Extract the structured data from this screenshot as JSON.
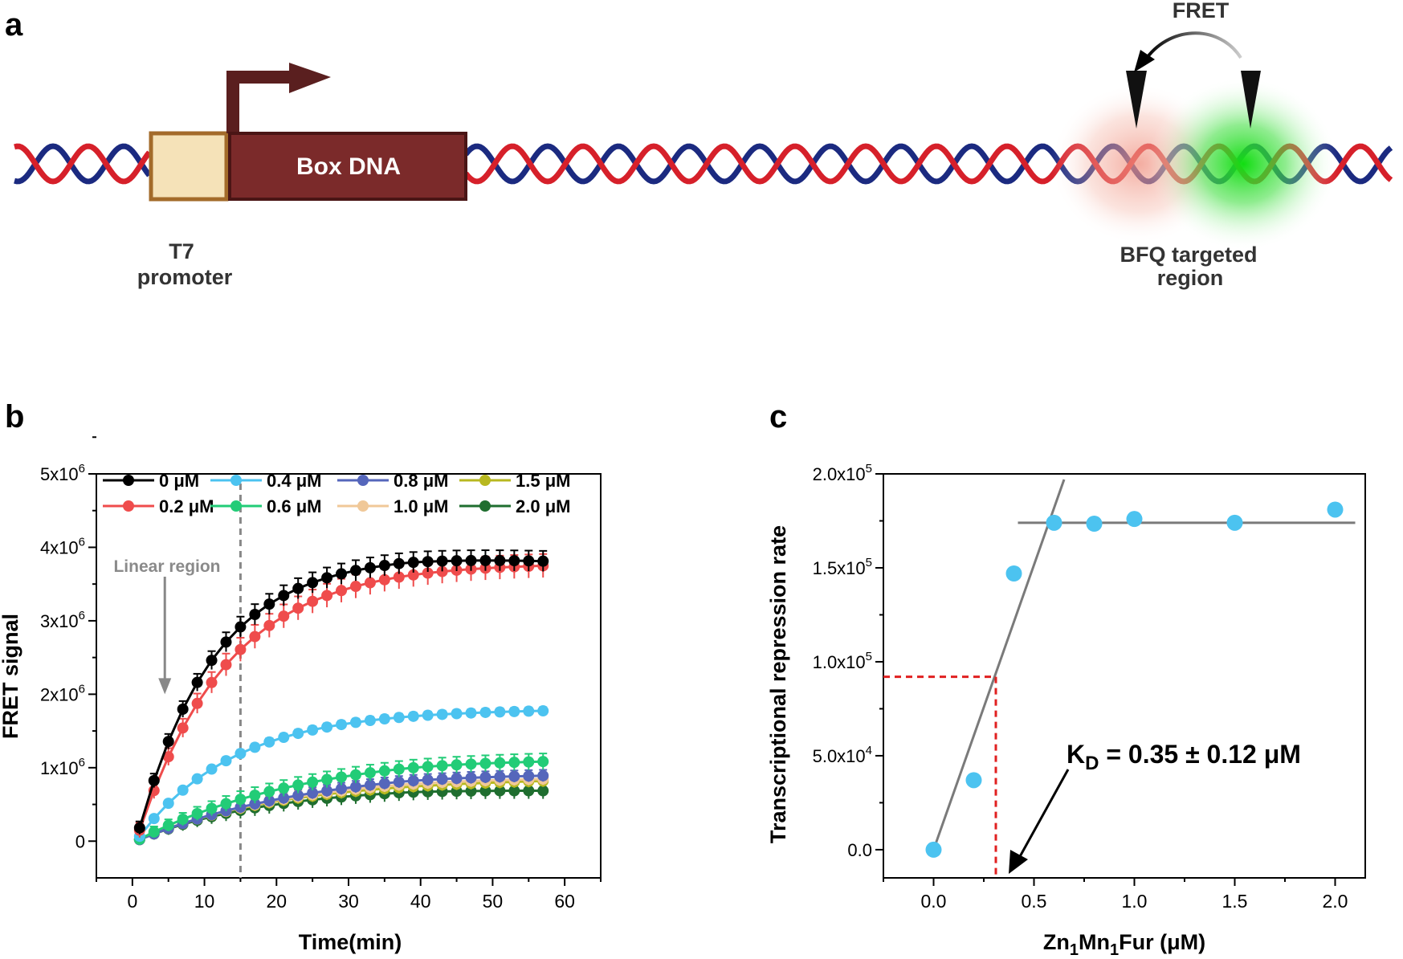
{
  "panel_a": {
    "letter": "a",
    "fret_label": "FRET",
    "box_label": "Box DNA",
    "promoter_line1": "T7",
    "promoter_line2": "promoter",
    "bfq_line1": "BFQ targeted",
    "bfq_line2": "region",
    "colors": {
      "strand_red": "#d6202a",
      "strand_blue": "#1b2a80",
      "box": "#7b2a2a",
      "promoter_fill": "#f5e2b8",
      "promoter_border": "#a36b2a",
      "fret_red": "#f2a090",
      "fret_green": "#22dd22"
    }
  },
  "chart_data": [
    {
      "panel": "b",
      "type": "line",
      "xlabel": "Time(min)",
      "ylabel": "FRET signal",
      "xlim": [
        -5,
        65
      ],
      "ylim": [
        -500000,
        5000000
      ],
      "xticks": [
        "0",
        "10",
        "20",
        "30",
        "40",
        "50",
        "60"
      ],
      "xtick_values": [
        0,
        10,
        20,
        30,
        40,
        50,
        60
      ],
      "yticks": [
        {
          "value": 0,
          "base": "0",
          "exp": ""
        },
        {
          "value": 1000000,
          "base": "1x10",
          "exp": "6"
        },
        {
          "value": 2000000,
          "base": "2x10",
          "exp": "6"
        },
        {
          "value": 3000000,
          "base": "3x10",
          "exp": "6"
        },
        {
          "value": 4000000,
          "base": "4x10",
          "exp": "6"
        },
        {
          "value": 5000000,
          "base": "5x10",
          "exp": "6"
        }
      ],
      "annotation": "Linear region",
      "linear_region_end_min": 15,
      "arrow_x_min": 4.5,
      "arrow_y_range": [
        3600000,
        2000000
      ],
      "time_range": [
        1,
        57
      ],
      "time_step": 2,
      "series": [
        {
          "name": "0 μM",
          "color": "#000000",
          "plateau": 3900000,
          "final": 3830000,
          "k": 0.095,
          "err": 140000
        },
        {
          "name": "0.2 μM",
          "color": "#ef4c4c",
          "plateau": 3800000,
          "final": 3790000,
          "k": 0.08,
          "err": 160000
        },
        {
          "name": "0.4 μM",
          "color": "#4cc3f0",
          "plateau": 1800000,
          "final": 1800000,
          "k": 0.075,
          "err": 50000
        },
        {
          "name": "0.6 μM",
          "color": "#22cc77",
          "plateau": 1250000,
          "final": 1200000,
          "k": 0.042,
          "err": 110000
        },
        {
          "name": "0.8 μM",
          "color": "#5566bb",
          "plateau": 1050000,
          "final": 1000000,
          "k": 0.04,
          "err": 80000
        },
        {
          "name": "1.0 μM",
          "color": "#f0c898",
          "plateau": 950000,
          "final": 920000,
          "k": 0.045,
          "err": 80000
        },
        {
          "name": "1.5 μM",
          "color": "#b8b820",
          "plateau": 870000,
          "final": 870000,
          "k": 0.05,
          "err": 80000
        },
        {
          "name": "2.0 μM",
          "color": "#1f6e2f",
          "plateau": 760000,
          "final": 720000,
          "k": 0.055,
          "err": 110000
        }
      ]
    },
    {
      "panel": "c",
      "type": "scatter",
      "xlabel_parts": [
        "Zn",
        "1",
        "Mn",
        "1",
        "Fur (μM)"
      ],
      "ylabel": "Transcriptional repression rate",
      "xlim": [
        -0.25,
        2.15
      ],
      "ylim": [
        -15000,
        200000
      ],
      "xticks": [
        "0.0",
        "0.5",
        "1.0",
        "1.5",
        "2.0"
      ],
      "xtick_values": [
        0,
        0.5,
        1.0,
        1.5,
        2.0
      ],
      "yticks": [
        {
          "value": 0,
          "base": "0.0",
          "exp": ""
        },
        {
          "value": 50000,
          "base": "5.0x10",
          "exp": "4"
        },
        {
          "value": 100000,
          "base": "1.0x10",
          "exp": "5"
        },
        {
          "value": 150000,
          "base": "1.5x10",
          "exp": "5"
        },
        {
          "value": 200000,
          "base": "2.0x10",
          "exp": "5"
        }
      ],
      "points_x": [
        0.0,
        0.2,
        0.4,
        0.6,
        0.8,
        1.0,
        1.5,
        2.0
      ],
      "points_y": [
        0,
        37000,
        147000,
        174000,
        173500,
        176000,
        174000,
        181000
      ],
      "point_color": "#4cc3f0",
      "fit_rise": {
        "x": [
          0.0,
          0.65
        ],
        "y": [
          0,
          197000
        ]
      },
      "fit_plateau": {
        "x": [
          0.42,
          2.1
        ],
        "y": [
          174000,
          174000
        ]
      },
      "kd_x": 0.31,
      "kd_y": 92000,
      "annotation_base": "K",
      "annotation_sub": "D",
      "annotation_rest": " = 0.35 ± 0.12 μM"
    }
  ],
  "panel_b": {
    "letter": "b"
  },
  "panel_c": {
    "letter": "c"
  }
}
